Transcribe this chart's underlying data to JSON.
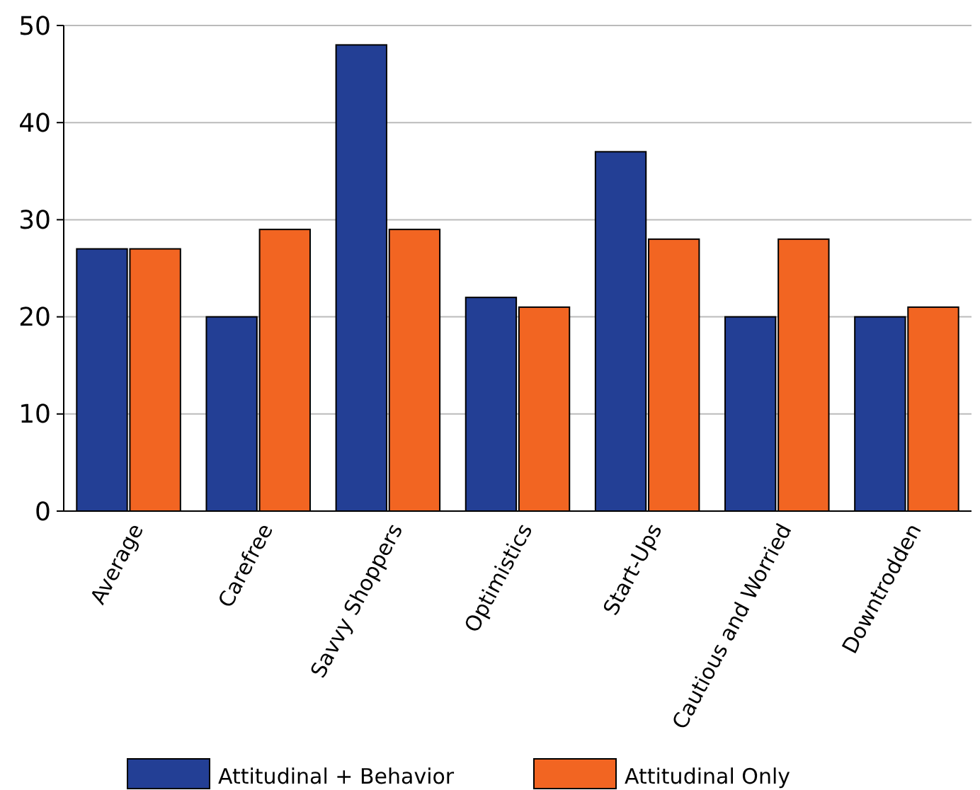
{
  "chart_data": {
    "type": "bar",
    "categories": [
      "Average",
      "Carefree",
      "Savvy Shoppers",
      "Optimistics",
      "Start-Ups",
      "Cautious and Worried",
      "Downtrodden"
    ],
    "series": [
      {
        "name": "Attitudinal + Behavior",
        "color": "#233f95",
        "values": [
          27,
          20,
          48,
          22,
          37,
          20,
          20
        ]
      },
      {
        "name": "Attitudinal Only",
        "color": "#f26522",
        "values": [
          27,
          29,
          29,
          21,
          28,
          28,
          21
        ]
      }
    ],
    "ylim": [
      0,
      50
    ],
    "yticks": [
      0,
      10,
      20,
      30,
      40,
      50
    ],
    "grid": "y",
    "legend": "bottom"
  }
}
